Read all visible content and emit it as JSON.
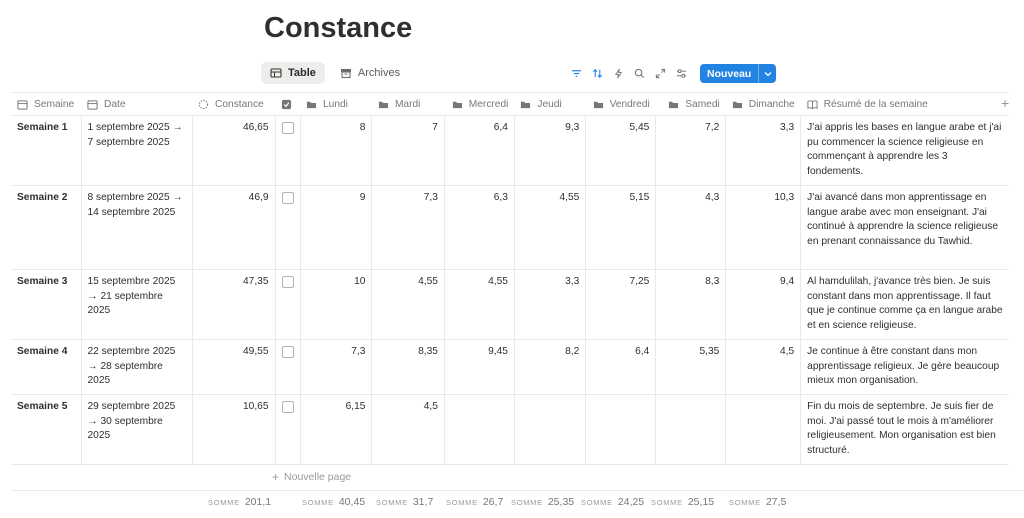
{
  "page": {
    "title": "Constance"
  },
  "views": [
    {
      "label": "Table"
    },
    {
      "label": "Archives"
    }
  ],
  "toolbar": {
    "new_label": "Nouveau",
    "accent": "#2383e2"
  },
  "columns": {
    "semaine": "Semaine",
    "date": "Date",
    "constance": "Constance",
    "lundi": "Lundi",
    "mardi": "Mardi",
    "mercredi": "Mercredi",
    "jeudi": "Jeudi",
    "vendredi": "Vendredi",
    "samedi": "Samedi",
    "dimanche": "Dimanche",
    "resume": "Résumé de la semaine"
  },
  "rows": [
    {
      "semaine": "Semaine 1",
      "date": "1 septembre 2025 → 7 septembre 2025",
      "constance": "46,65",
      "checked": false,
      "lundi": "8",
      "mardi": "7",
      "mercredi": "6,4",
      "jeudi": "9,3",
      "vendredi": "5,45",
      "samedi": "7,2",
      "dimanche": "3,3",
      "resume": "J'ai appris les bases en langue arabe et j'ai pu commencer la science religieuse en commençant à apprendre les 3 fondements."
    },
    {
      "semaine": "Semaine 2",
      "date": "8 septembre 2025 → 14 septembre 2025",
      "constance": "46,9",
      "checked": false,
      "lundi": "9",
      "mardi": "7,3",
      "mercredi": "6,3",
      "jeudi": "4,55",
      "vendredi": "5,15",
      "samedi": "4,3",
      "dimanche": "10,3",
      "resume": "J'ai avancé dans mon apprentissage en langue arabe avec mon enseignant. J'ai continué à apprendre la science religieuse en prenant connaissance du Tawhid."
    },
    {
      "semaine": "Semaine 3",
      "date": "15 septembre 2025 → 21 septembre 2025",
      "constance": "47,35",
      "checked": false,
      "lundi": "10",
      "mardi": "4,55",
      "mercredi": "4,55",
      "jeudi": "3,3",
      "vendredi": "7,25",
      "samedi": "8,3",
      "dimanche": "9,4",
      "resume": "Al hamdulilah, j'avance très bien. Je suis constant dans mon apprentissage. Il faut que je continue comme ça en langue arabe et en science religieuse."
    },
    {
      "semaine": "Semaine 4",
      "date": "22 septembre 2025 → 28 septembre 2025",
      "constance": "49,55",
      "checked": false,
      "lundi": "7,3",
      "mardi": "8,35",
      "mercredi": "9,45",
      "jeudi": "8,2",
      "vendredi": "6,4",
      "samedi": "5,35",
      "dimanche": "4,5",
      "resume": "Je continue à être constant dans mon apprentissage religieux. Je gère beaucoup mieux mon organisation."
    },
    {
      "semaine": "Semaine 5",
      "date": "29 septembre 2025 → 30 septembre 2025",
      "constance": "10,65",
      "checked": false,
      "lundi": "6,15",
      "mardi": "4,5",
      "mercredi": "",
      "jeudi": "",
      "vendredi": "",
      "samedi": "",
      "dimanche": "",
      "resume": "Fin du mois de septembre. Je suis fier de moi. J'ai passé tout le mois à m'améliorer religieusement. Mon organisation est bien structuré."
    }
  ],
  "new_page": "Nouvelle page",
  "sums": {
    "label": "SOMME",
    "constance": "201,1",
    "lundi": "40,45",
    "mardi": "31,7",
    "mercredi": "26,7",
    "jeudi": "25,35",
    "vendredi": "24,25",
    "samedi": "25,15",
    "dimanche": "27,5"
  }
}
